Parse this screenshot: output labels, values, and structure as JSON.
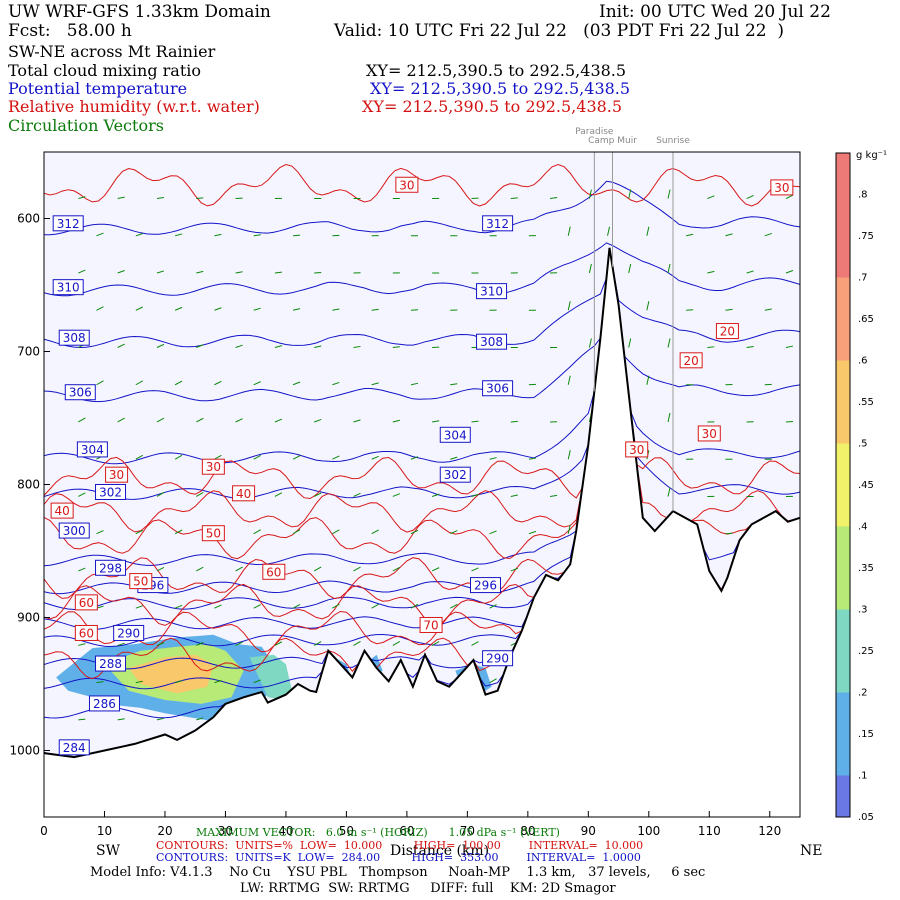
{
  "header": {
    "line1_left": "UW WRF-GFS 1.33km Domain",
    "line1_right": "Init: 00 UTC Wed 20 Jul 22",
    "line2_left": "Fcst:   58.00 h",
    "line2_right": "Valid: 10 UTC Fri 22 Jul 22   (03 PDT Fri 22 Jul 22  )",
    "line3": "SW-NE across Mt Rainier",
    "field1": "Total cloud mixing ratio",
    "field1_xy": "XY= 212.5,390.5 to 292.5,438.5",
    "field2": "Potential temperature",
    "field2_xy": "XY= 212.5,390.5 to 292.5,438.5",
    "field3": "Relative humidity (w.r.t. water)",
    "field3_xy": "XY= 212.5,390.5 to 292.5,438.5",
    "field4": "Circulation Vectors"
  },
  "sites": [
    "Paradise",
    "Camp Muir",
    "Sunrise"
  ],
  "colorbar": {
    "unit": "g kg⁻¹",
    "ticks": [
      ".8",
      ".75",
      ".7",
      ".65",
      ".6",
      ".55",
      ".5",
      ".45",
      ".4",
      ".35",
      ".3",
      ".25",
      ".2",
      ".15",
      ".1",
      ".05"
    ]
  },
  "footer": {
    "sw": "SW",
    "ne": "NE",
    "maxvec": "MAXIMUM VECTOR:   6.0 m s⁻¹ (HORIZ)      1.05 dPa s⁻¹ (VERT)",
    "xlabel": "Distance (km)",
    "contours_rh": "CONTOURS:  UNITS=%  LOW=  10.000         HIGH=  100.00        INTERVAL=  10.000",
    "contours_th": "CONTOURS:  UNITS=K  LOW=  284.00         HIGH=  353.00        INTERVAL=  1.0000",
    "model": "Model Info: V4.1.3    No Cu    YSU PBL   Thompson     Noah-MP    1.3 km,   37 levels,     6 sec",
    "model2": "LW: RRTMG  SW: RRTMG     DIFF: full    KM: 2D Smagor"
  },
  "colors": {
    "theta": "#1414c8",
    "rh": "#d81818",
    "vectors": "#0a8a0a",
    "terrain": "#000000",
    "background": "#f5f5ff"
  },
  "chart_data": {
    "type": "cross-section",
    "xlim": [
      0,
      125
    ],
    "ylim": [
      1050,
      550
    ],
    "y_scale": "pressure (hPa, inverted)",
    "x_ticks": [
      0,
      10,
      20,
      30,
      40,
      50,
      60,
      70,
      80,
      90,
      100,
      110,
      120
    ],
    "y_ticks": [
      600,
      700,
      800,
      900,
      1000
    ],
    "y_tick_labels": [
      "600",
      "700",
      "800",
      "900",
      "1000"
    ],
    "site_x": [
      91,
      94,
      104
    ],
    "terrain": {
      "x": [
        0,
        5,
        10,
        15,
        20,
        22,
        25,
        28,
        30,
        33,
        36,
        37,
        40,
        42,
        44,
        45,
        47,
        49,
        51,
        53,
        55,
        57,
        59,
        61,
        63,
        65,
        67,
        69,
        71,
        73,
        75,
        77,
        79,
        81,
        83,
        85,
        87,
        88,
        90,
        92,
        93.5,
        95,
        97,
        99,
        101,
        103,
        104,
        106,
        108,
        110,
        112,
        113,
        115,
        117,
        119,
        121,
        123,
        125
      ],
      "p": [
        1002,
        1005,
        1000,
        995,
        988,
        992,
        985,
        975,
        965,
        960,
        956,
        964,
        958,
        950,
        955,
        956,
        925,
        935,
        945,
        925,
        938,
        948,
        932,
        952,
        928,
        948,
        952,
        942,
        932,
        958,
        955,
        930,
        910,
        885,
        868,
        872,
        860,
        835,
        770,
        690,
        622,
        665,
        745,
        825,
        835,
        825,
        820,
        825,
        830,
        865,
        880,
        870,
        842,
        830,
        825,
        820,
        828,
        825
      ]
    },
    "theta": {
      "levels": [
        284,
        286,
        288,
        290,
        292,
        294,
        296,
        298,
        300,
        302,
        304,
        306,
        308,
        310,
        312
      ],
      "p_left": [
        1000,
        970,
        948,
        933,
        916,
        903,
        888,
        876,
        855,
        805,
        778,
        731,
        690,
        651,
        605
      ],
      "labels": [
        {
          "text": "284",
          "x": 5,
          "p": 998
        },
        {
          "text": "286",
          "x": 10,
          "p": 965
        },
        {
          "text": "288",
          "x": 11,
          "p": 935
        },
        {
          "text": "290",
          "x": 14,
          "p": 912
        },
        {
          "text": "296",
          "x": 18,
          "p": 876
        },
        {
          "text": "298",
          "x": 11,
          "p": 863
        },
        {
          "text": "300",
          "x": 5,
          "p": 835
        },
        {
          "text": "302",
          "x": 11,
          "p": 806
        },
        {
          "text": "304",
          "x": 8,
          "p": 774
        },
        {
          "text": "306",
          "x": 6,
          "p": 731
        },
        {
          "text": "308",
          "x": 5,
          "p": 690
        },
        {
          "text": "310",
          "x": 4,
          "p": 652
        },
        {
          "text": "312",
          "x": 4,
          "p": 604
        },
        {
          "text": "312",
          "x": 75,
          "p": 604
        },
        {
          "text": "310",
          "x": 74,
          "p": 655
        },
        {
          "text": "308",
          "x": 74,
          "p": 693
        },
        {
          "text": "306",
          "x": 75,
          "p": 728
        },
        {
          "text": "304",
          "x": 68,
          "p": 763
        },
        {
          "text": "302",
          "x": 68,
          "p": 793
        },
        {
          "text": "296",
          "x": 73,
          "p": 876
        },
        {
          "text": "290",
          "x": 75,
          "p": 931
        }
      ]
    },
    "rh": {
      "labels": [
        {
          "text": "30",
          "x": 60,
          "p": 575
        },
        {
          "text": "30",
          "x": 122,
          "p": 577
        },
        {
          "text": "30",
          "x": 12,
          "p": 793
        },
        {
          "text": "30",
          "x": 28,
          "p": 787
        },
        {
          "text": "40",
          "x": 3,
          "p": 820
        },
        {
          "text": "40",
          "x": 33,
          "p": 807
        },
        {
          "text": "50",
          "x": 28,
          "p": 837
        },
        {
          "text": "50",
          "x": 16,
          "p": 873
        },
        {
          "text": "60",
          "x": 38,
          "p": 866
        },
        {
          "text": "60",
          "x": 7,
          "p": 889
        },
        {
          "text": "60",
          "x": 7,
          "p": 912
        },
        {
          "text": "70",
          "x": 64,
          "p": 906
        },
        {
          "text": "20",
          "x": 113,
          "p": 685
        },
        {
          "text": "20",
          "x": 107,
          "p": 707
        },
        {
          "text": "30",
          "x": 110,
          "p": 762
        },
        {
          "text": "30",
          "x": 98,
          "p": 774
        }
      ]
    },
    "cloud": {
      "colorbar_range": [
        0.05,
        0.85
      ],
      "regions": [
        {
          "x": [
            2,
            8,
            15,
            22,
            28,
            32,
            36,
            38,
            37,
            33,
            28,
            24,
            20,
            16,
            12,
            8,
            4,
            2
          ],
          "p": [
            945,
            923,
            920,
            915,
            913,
            920,
            922,
            935,
            958,
            972,
            978,
            975,
            972,
            968,
            966,
            960,
            955,
            945
          ],
          "value": 0.1
        },
        {
          "x": [
            10,
            16,
            22,
            27,
            30,
            33,
            31,
            26,
            20,
            14,
            10
          ],
          "p": [
            935,
            925,
            922,
            920,
            925,
            940,
            960,
            965,
            962,
            955,
            935
          ],
          "value": 0.35
        },
        {
          "x": [
            14,
            20,
            25,
            28,
            27,
            22,
            16,
            14
          ],
          "p": [
            938,
            930,
            928,
            935,
            952,
            957,
            950,
            938
          ],
          "value": 0.55
        },
        {
          "x": [
            34,
            38,
            40,
            41,
            40,
            37,
            34
          ],
          "p": [
            930,
            928,
            935,
            955,
            962,
            960,
            930
          ],
          "value": 0.2
        },
        {
          "x": [
            47,
            48,
            50,
            51,
            49,
            47
          ],
          "p": [
            935,
            930,
            935,
            948,
            950,
            935
          ],
          "value": 0.1
        },
        {
          "x": [
            53,
            55,
            56,
            54,
            53
          ],
          "p": [
            935,
            928,
            940,
            946,
            935
          ],
          "value": 0.1
        },
        {
          "x": [
            68,
            71,
            73,
            74,
            72,
            69,
            68
          ],
          "p": [
            940,
            935,
            938,
            952,
            958,
            952,
            940
          ],
          "value": 0.15
        }
      ]
    }
  }
}
